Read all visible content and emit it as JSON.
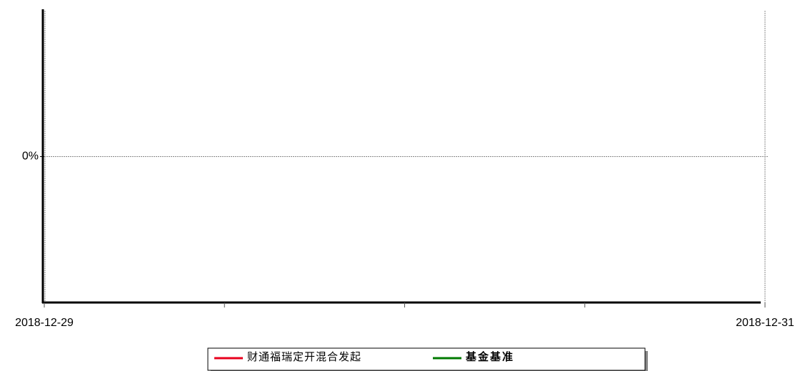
{
  "chart_data": {
    "type": "line",
    "categories": [
      "2018-12-29",
      null,
      null,
      null,
      "2018-12-31"
    ],
    "series": [
      {
        "name": "财通福瑞定开混合发起",
        "color": "#e8001c",
        "values": [
          null,
          null,
          null,
          null,
          null
        ]
      },
      {
        "name": "基金基准",
        "color": "#007a00",
        "values": [
          null,
          null,
          null,
          null,
          null
        ]
      }
    ],
    "ylim": [
      -1,
      1
    ],
    "yticks": [
      {
        "value": 0,
        "label": "0%"
      }
    ],
    "grid": true
  }
}
